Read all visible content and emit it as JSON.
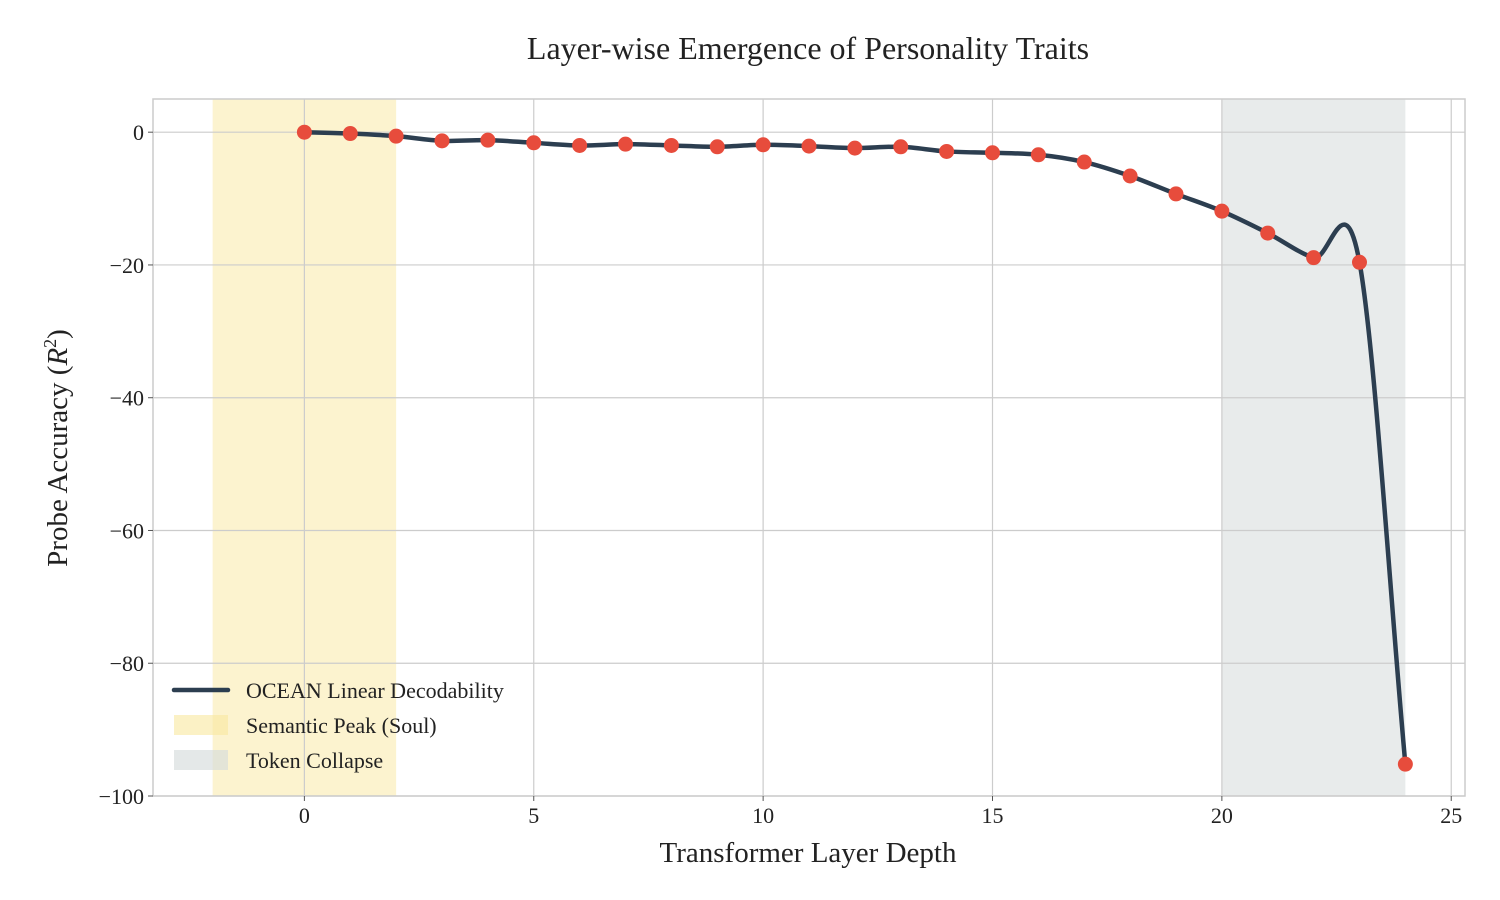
{
  "chart_data": {
    "type": "line",
    "title": "Layer-wise Emergence of Personality Traits",
    "xlabel": "Transformer Layer Depth",
    "ylabel_main": "Probe Accuracy (",
    "ylabel_sym": "R",
    "ylabel_sup": "2",
    "ylabel_end": ")",
    "xlim": [
      -3.3,
      25.3
    ],
    "ylim": [
      -100,
      5
    ],
    "xticks": [
      0,
      5,
      10,
      15,
      20,
      25
    ],
    "xtick_labels": [
      "0",
      "5",
      "10",
      "15",
      "20",
      "25"
    ],
    "yticks": [
      0,
      -20,
      -40,
      -60,
      -80,
      -100
    ],
    "ytick_labels": [
      "0",
      "−20",
      "−40",
      "−60",
      "−80",
      "−100"
    ],
    "grid": true,
    "legend_placement": "lower-left",
    "series": [
      {
        "name": "OCEAN Linear Decodability",
        "x": [
          0,
          1,
          2,
          3,
          4,
          5,
          6,
          7,
          8,
          9,
          10,
          11,
          12,
          13,
          14,
          15,
          16,
          17,
          18,
          19,
          20,
          21,
          22,
          23,
          24
        ],
        "values": [
          0.0,
          -0.2,
          -0.6,
          -1.3,
          -1.2,
          -1.6,
          -2.0,
          -1.8,
          -2.0,
          -2.2,
          -1.9,
          -2.1,
          -2.4,
          -2.2,
          -2.9,
          -3.1,
          -3.4,
          -4.5,
          -6.6,
          -9.3,
          -11.9,
          -15.2,
          -18.9,
          -19.6,
          -95.2
        ],
        "line_color": "#2c3e50",
        "marker_color": "#e74c3c"
      }
    ],
    "spans": [
      {
        "name": "Semantic Peak (Soul)",
        "x0": -2,
        "x1": 2,
        "color": "#f9e79f",
        "opacity": 0.5
      },
      {
        "name": "Token Collapse",
        "x0": 20,
        "x1": 24,
        "color": "#d5dbdb",
        "opacity": 0.55
      }
    ]
  }
}
